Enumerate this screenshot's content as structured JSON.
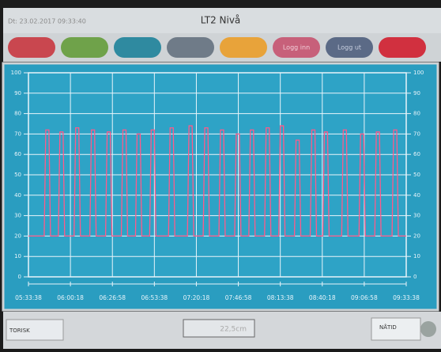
{
  "header": {
    "datetime": "Dt: 23.02.2017 09:33:40",
    "title": "LT2 Nivå"
  },
  "buttons": [
    "Logg inn",
    "Logg ut"
  ],
  "chart_data": {
    "type": "line",
    "color": "#ff5a8a",
    "grid": true,
    "x": [
      "05:33:38",
      "05:43:38",
      "05:44:38",
      "05:46:38",
      "05:47:38",
      "05:52:38",
      "05:53:38",
      "05:55:38",
      "05:56:38",
      "06:02:38",
      "06:03:38",
      "06:05:38",
      "06:06:38",
      "06:12:38",
      "06:13:38",
      "06:15:38",
      "06:16:38",
      "06:22:38",
      "06:23:38",
      "06:25:38",
      "06:26:38",
      "06:32:38",
      "06:33:38",
      "06:35:38",
      "06:36:38",
      "06:41:38",
      "06:42:38",
      "06:44:38",
      "06:45:38",
      "06:50:38",
      "06:51:38",
      "06:53:38",
      "06:54:38",
      "07:02:38",
      "07:03:38",
      "07:05:38",
      "07:06:38",
      "07:14:38",
      "07:15:38",
      "07:17:38",
      "07:18:38",
      "07:24:38",
      "07:25:38",
      "07:27:38",
      "07:28:38",
      "07:34:38",
      "07:35:38",
      "07:37:38",
      "07:38:38",
      "07:44:38",
      "07:45:38",
      "07:47:38",
      "07:48:38",
      "07:53:38",
      "07:54:38",
      "07:56:38",
      "07:57:38",
      "08:03:38",
      "08:04:38",
      "08:06:38",
      "08:07:38",
      "08:12:38",
      "08:13:38",
      "08:15:38",
      "08:16:38",
      "08:22:38",
      "08:23:38",
      "08:25:38",
      "08:26:38",
      "08:32:38",
      "08:33:38",
      "08:35:38",
      "08:36:38",
      "08:40:38",
      "08:41:38",
      "08:43:38",
      "08:44:38",
      "08:52:38",
      "08:53:38",
      "08:55:38",
      "08:56:38",
      "09:03:38",
      "09:04:38",
      "09:06:38",
      "09:07:38",
      "09:13:38",
      "09:14:38",
      "09:16:38",
      "09:17:38",
      "09:24:38",
      "09:25:38",
      "09:27:38",
      "09:28:38",
      "09:33:38"
    ],
    "values": [
      20,
      20,
      72,
      72,
      20,
      20,
      71,
      71,
      20,
      20,
      73,
      73,
      20,
      20,
      72,
      72,
      20,
      20,
      71,
      71,
      20,
      20,
      72,
      72,
      20,
      20,
      70,
      70,
      20,
      20,
      72,
      72,
      20,
      20,
      73,
      73,
      20,
      20,
      74,
      74,
      20,
      20,
      73,
      73,
      20,
      20,
      72,
      72,
      20,
      20,
      70,
      70,
      20,
      20,
      72,
      72,
      20,
      20,
      73,
      73,
      20,
      20,
      74,
      74,
      20,
      20,
      67,
      67,
      20,
      20,
      72,
      72,
      20,
      20,
      71,
      71,
      20,
      20,
      72,
      72,
      20,
      20,
      70,
      70,
      20,
      20,
      71,
      71,
      20,
      20,
      72,
      72,
      20,
      20
    ],
    "xlim": [
      "05:33:38",
      "09:33:38"
    ],
    "xticks": [
      "05:33:38",
      "06:00:18",
      "06:26:58",
      "06:53:38",
      "07:20:18",
      "07:46:58",
      "08:13:38",
      "08:40:18",
      "09:06:58",
      "09:33:38"
    ],
    "ylim": [
      0,
      100
    ],
    "yticks": [
      0,
      10,
      20,
      30,
      40,
      50,
      60,
      70,
      80,
      90,
      100
    ]
  },
  "footer": {
    "history": "TORISK",
    "level": "22,5cm",
    "now": "NÅTID"
  }
}
